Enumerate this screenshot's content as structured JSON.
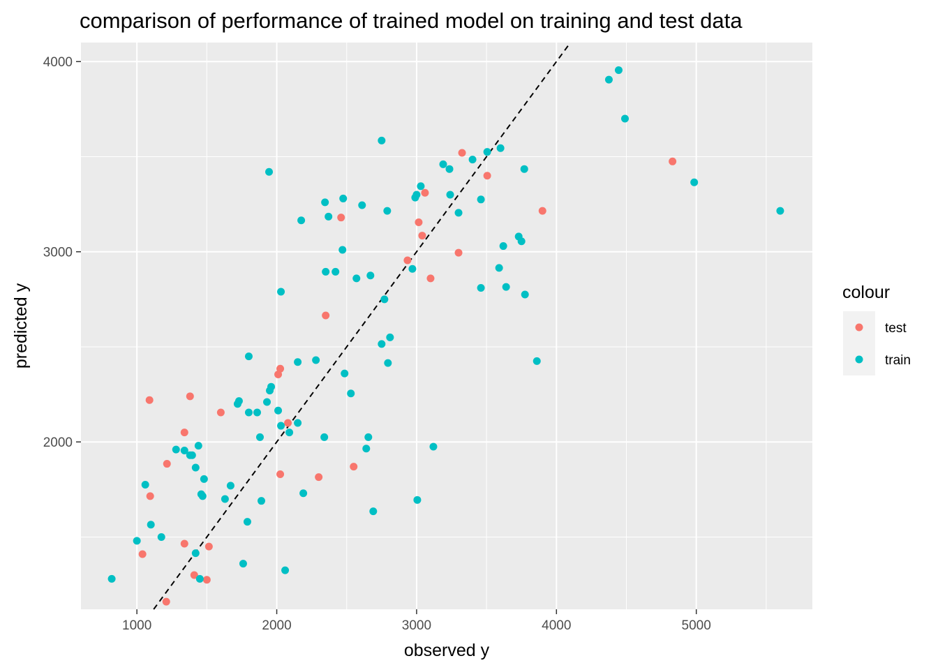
{
  "chart_data": {
    "type": "scatter",
    "title": "comparison of performance of trained model on training and test data",
    "xlabel": "observed y",
    "ylabel": "predicted y",
    "xlim": [
      600,
      5830
    ],
    "ylim": [
      1120,
      4100
    ],
    "x_ticks": [
      1000,
      2000,
      3000,
      4000,
      5000
    ],
    "x_tick_labels": [
      "1000",
      "2000",
      "3000",
      "4000",
      "5000"
    ],
    "y_ticks": [
      2000,
      3000,
      4000
    ],
    "y_tick_labels": [
      "2000",
      "3000",
      "4000"
    ],
    "grid": true,
    "reference_line": {
      "type": "identity",
      "style": "dashed",
      "color": "#000000"
    },
    "legend": {
      "title": "colour",
      "placement": "right",
      "entries": [
        {
          "label": "test",
          "color": "#F8766D"
        },
        {
          "label": "train",
          "color": "#00BFC4"
        }
      ]
    },
    "series": [
      {
        "name": "test",
        "color": "#F8766D",
        "points": [
          [
            1090,
            2220
          ],
          [
            1380,
            2240
          ],
          [
            1340,
            2050
          ],
          [
            1215,
            1885
          ],
          [
            1095,
            1715
          ],
          [
            1040,
            1410
          ],
          [
            1340,
            1465
          ],
          [
            1515,
            1450
          ],
          [
            1410,
            1300
          ],
          [
            1500,
            1275
          ],
          [
            1210,
            1160
          ],
          [
            1600,
            2155
          ],
          [
            2010,
            2355
          ],
          [
            2025,
            2385
          ],
          [
            2080,
            2100
          ],
          [
            2025,
            1830
          ],
          [
            2300,
            1815
          ],
          [
            2550,
            1870
          ],
          [
            2350,
            2665
          ],
          [
            2460,
            3180
          ],
          [
            2935,
            2955
          ],
          [
            3015,
            3155
          ],
          [
            3040,
            3085
          ],
          [
            3060,
            3310
          ],
          [
            3100,
            2860
          ],
          [
            3325,
            3520
          ],
          [
            3300,
            2995
          ],
          [
            3505,
            3400
          ],
          [
            3900,
            3215
          ],
          [
            4830,
            3475
          ]
        ]
      },
      {
        "name": "train",
        "color": "#00BFC4",
        "points": [
          [
            820,
            1280
          ],
          [
            1000,
            1480
          ],
          [
            1100,
            1565
          ],
          [
            1175,
            1500
          ],
          [
            1060,
            1775
          ],
          [
            1280,
            1960
          ],
          [
            1340,
            1955
          ],
          [
            1380,
            1930
          ],
          [
            1395,
            1930
          ],
          [
            1440,
            1980
          ],
          [
            1420,
            1865
          ],
          [
            1480,
            1805
          ],
          [
            1460,
            1725
          ],
          [
            1470,
            1715
          ],
          [
            1420,
            1415
          ],
          [
            1450,
            1280
          ],
          [
            1630,
            1700
          ],
          [
            1670,
            1770
          ],
          [
            1720,
            2200
          ],
          [
            1730,
            2215
          ],
          [
            1800,
            2450
          ],
          [
            1800,
            2155
          ],
          [
            1860,
            2155
          ],
          [
            1880,
            2025
          ],
          [
            1930,
            2210
          ],
          [
            1950,
            2270
          ],
          [
            1960,
            2290
          ],
          [
            2010,
            2165
          ],
          [
            2030,
            2085
          ],
          [
            2090,
            2050
          ],
          [
            1790,
            1580
          ],
          [
            1760,
            1360
          ],
          [
            1890,
            1690
          ],
          [
            2060,
            1325
          ],
          [
            2190,
            1730
          ],
          [
            1945,
            3420
          ],
          [
            2030,
            2790
          ],
          [
            2150,
            2420
          ],
          [
            2150,
            2100
          ],
          [
            2175,
            3165
          ],
          [
            2280,
            2430
          ],
          [
            2340,
            2025
          ],
          [
            2345,
            3260
          ],
          [
            2350,
            2895
          ],
          [
            2370,
            3185
          ],
          [
            2420,
            2895
          ],
          [
            2470,
            3010
          ],
          [
            2475,
            3280
          ],
          [
            2485,
            2360
          ],
          [
            2530,
            2255
          ],
          [
            2570,
            2860
          ],
          [
            2610,
            3245
          ],
          [
            2640,
            1965
          ],
          [
            2655,
            2025
          ],
          [
            2670,
            2875
          ],
          [
            2690,
            1635
          ],
          [
            2750,
            3585
          ],
          [
            2750,
            2515
          ],
          [
            2770,
            2750
          ],
          [
            2790,
            3215
          ],
          [
            2795,
            2415
          ],
          [
            2810,
            2550
          ],
          [
            2970,
            2910
          ],
          [
            2990,
            3285
          ],
          [
            3000,
            3300
          ],
          [
            3005,
            1695
          ],
          [
            3030,
            3345
          ],
          [
            3120,
            1975
          ],
          [
            3190,
            3460
          ],
          [
            3235,
            3435
          ],
          [
            3240,
            3300
          ],
          [
            3300,
            3205
          ],
          [
            3400,
            3485
          ],
          [
            3460,
            3275
          ],
          [
            3460,
            2810
          ],
          [
            3505,
            3525
          ],
          [
            3600,
            3545
          ],
          [
            3590,
            2915
          ],
          [
            3620,
            3030
          ],
          [
            3640,
            2815
          ],
          [
            3730,
            3080
          ],
          [
            3750,
            3055
          ],
          [
            3770,
            3435
          ],
          [
            3775,
            2775
          ],
          [
            3860,
            2425
          ],
          [
            4375,
            3905
          ],
          [
            4445,
            3955
          ],
          [
            4490,
            3700
          ],
          [
            4985,
            3365
          ],
          [
            5600,
            3215
          ]
        ]
      }
    ]
  }
}
